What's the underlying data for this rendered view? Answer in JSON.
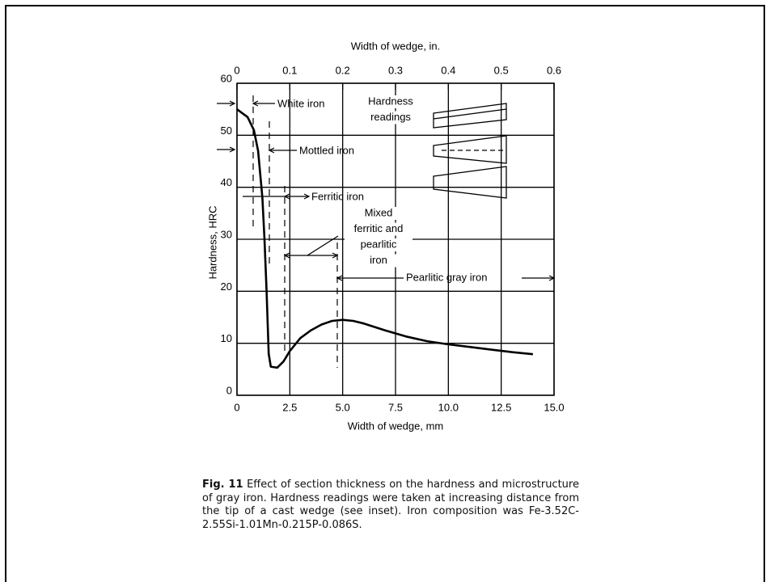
{
  "chart_data": {
    "type": "line",
    "xlabel": "Width of wedge, mm",
    "x2label": "Width of wedge, in.",
    "ylabel": "Hardness, HRC",
    "x": [
      0,
      0.5,
      0.8,
      1.0,
      1.2,
      1.3,
      1.4,
      1.5,
      1.6,
      1.9,
      2.2,
      2.5,
      3.0,
      3.5,
      4.0,
      4.5,
      5.0,
      5.5,
      6.0,
      7.0,
      8.0,
      9.0,
      10.0,
      11.0,
      12.0,
      13.0,
      14.0
    ],
    "series": [
      {
        "color": "#000000",
        "values": [
          55,
          53.5,
          51,
          47,
          38,
          30,
          20,
          8,
          5.5,
          5.3,
          6.5,
          8.5,
          11,
          12.5,
          13.6,
          14.3,
          14.5,
          14.3,
          13.8,
          12.5,
          11.3,
          10.4,
          9.8,
          9.3,
          8.8,
          8.3,
          7.9
        ]
      }
    ],
    "xlim": [
      0,
      15
    ],
    "xticks": [
      0,
      2.5,
      {
        "value": 5,
        "label": "5.0"
      },
      7.5,
      {
        "value": 10,
        "label": "10.0"
      },
      12.5,
      {
        "value": 15,
        "label": "15.0"
      }
    ],
    "x2lim": [
      0,
      0.6
    ],
    "x2ticks": [
      0,
      0.1,
      0.2,
      0.3,
      0.4,
      0.5,
      0.6
    ],
    "ylim": [
      0,
      60
    ],
    "yticks": [
      0,
      10,
      20,
      30,
      40,
      50,
      60
    ],
    "grid": true,
    "annotations": [
      {
        "lines": [
          "White iron"
        ]
      },
      {
        "lines": [
          "Hardness",
          "readings"
        ]
      },
      {
        "lines": [
          "Mottled iron"
        ]
      },
      {
        "lines": [
          "Ferritic iron"
        ]
      },
      {
        "lines": [
          "Mixed",
          "ferritic and",
          "pearlitic",
          "iron"
        ]
      },
      {
        "lines": [
          "Pearlitic gray iron"
        ]
      }
    ]
  },
  "caption": {
    "label": "Fig. 11",
    "text": "Effect of section thickness on the hardness and microstructure of gray iron. Hardness readings were taken at increasing distance from the tip of a cast wedge (see inset). Iron composition was Fe-3.52C-2.55Si-1.01Mn-0.215P-0.086S."
  }
}
